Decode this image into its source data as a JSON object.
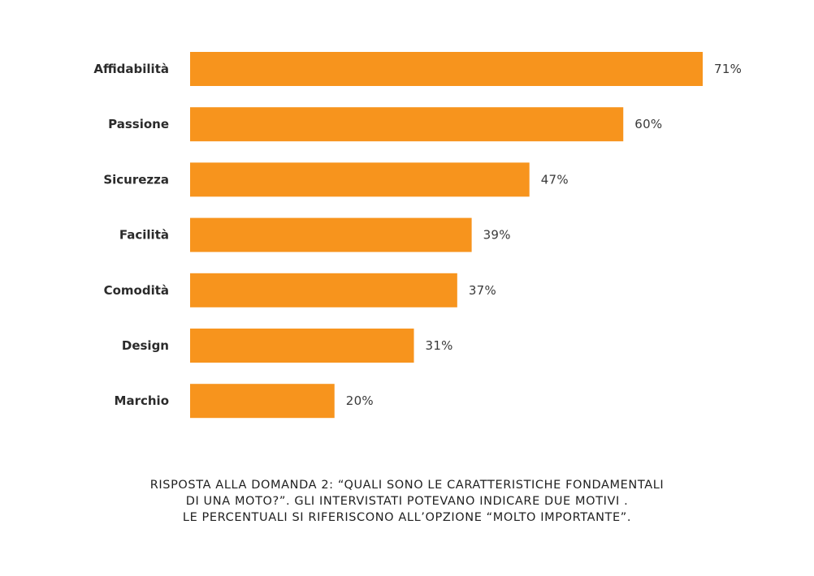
{
  "chart_data": {
    "type": "bar",
    "orientation": "horizontal",
    "categories": [
      "Affidabilità",
      "Passione",
      "Sicurezza",
      "Facilità",
      "Comodità",
      "Design",
      "Marchio"
    ],
    "values": [
      71,
      60,
      47,
      39,
      37,
      31,
      20
    ],
    "value_labels": [
      "71%",
      "60%",
      "47%",
      "39%",
      "37%",
      "31%",
      "20%"
    ],
    "unit": "%",
    "xlim": [
      0,
      71
    ],
    "grid": false,
    "legend": "none",
    "bar_color": "#F7941D",
    "title": "",
    "xlabel": "",
    "ylabel": ""
  },
  "caption": {
    "lines": [
      "RISPOSTA ALLA DOMANDA 2: “QUALI SONO LE CARATTERISTICHE FONDAMENTALI",
      "DI UNA MOTO?”. GLI INTERVISTATI POTEVANO INDICARE DUE MOTIVI .",
      "LE PERCENTUALI SI RIFERISCONO ALL’OPZIONE “MOLTO IMPORTANTE”."
    ]
  }
}
